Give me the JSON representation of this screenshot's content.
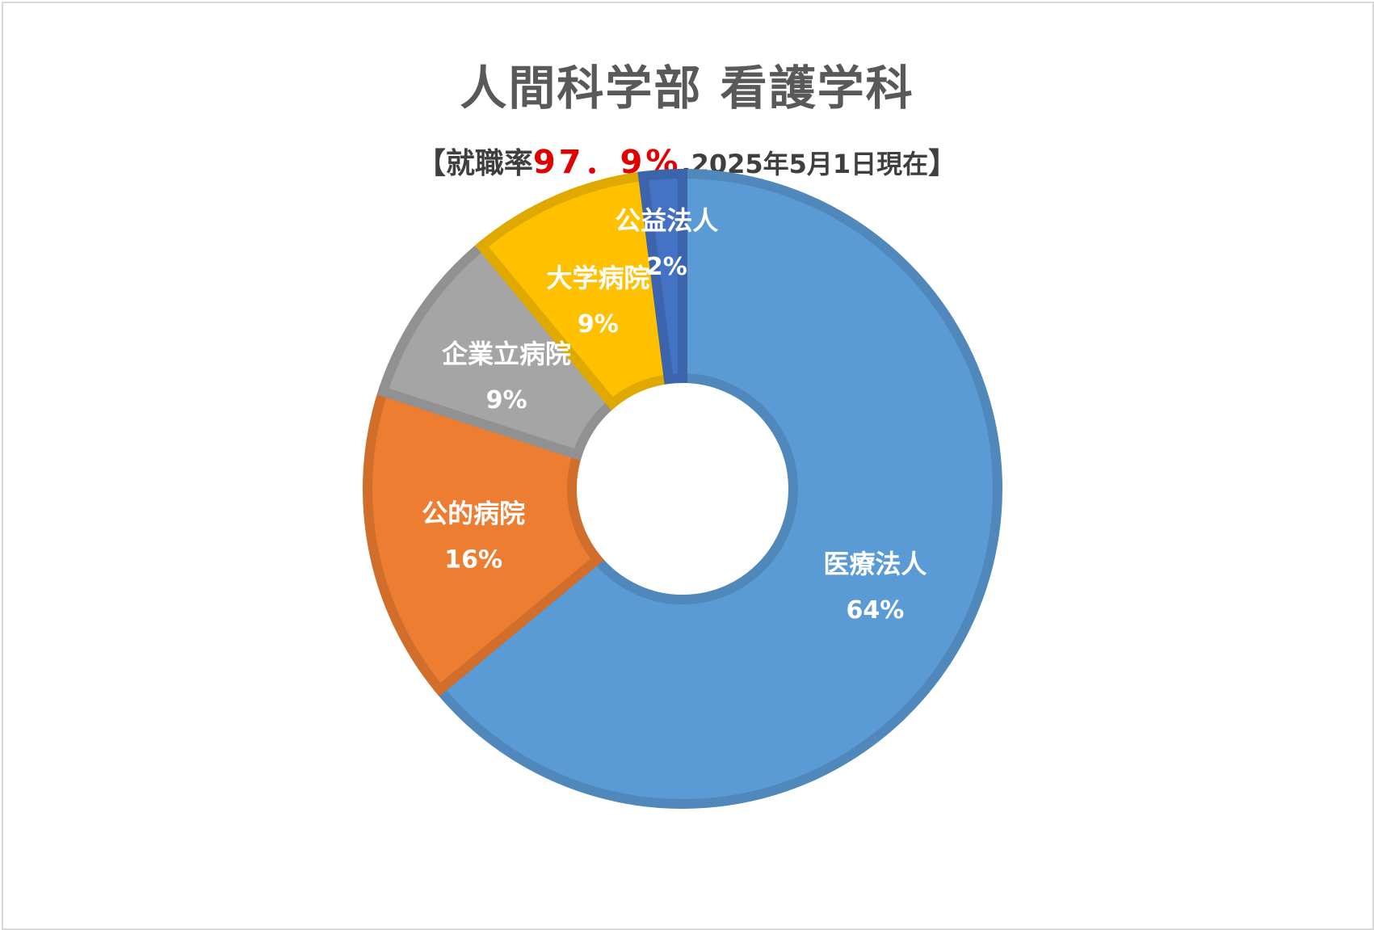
{
  "title": "人間科学部 看護学科",
  "subtitle": {
    "open": "【",
    "prefix": "就職率",
    "rate": "97．9%",
    "date": ",2025年5月1日現在",
    "close": "】"
  },
  "chart_data": {
    "type": "pie",
    "title": "人間科学部 看護学科",
    "subtitle": "【就職率97．9%,2025年5月1日現在】",
    "slices": [
      {
        "label": "医療法人",
        "value": 64,
        "value_label": "64%",
        "color": "#5b9bd5"
      },
      {
        "label": "公的病院",
        "value": 16,
        "value_label": "16%",
        "color": "#ed7d31"
      },
      {
        "label": "企業立病院",
        "value": 9,
        "value_label": "9%",
        "color": "#a5a5a5"
      },
      {
        "label": "大学病院",
        "value": 9,
        "value_label": "9%",
        "color": "#ffc000"
      },
      {
        "label": "公益法人",
        "value": 2,
        "value_label": "2%",
        "color": "#4472c4"
      }
    ],
    "legend": "none",
    "data_labels": "inside"
  }
}
